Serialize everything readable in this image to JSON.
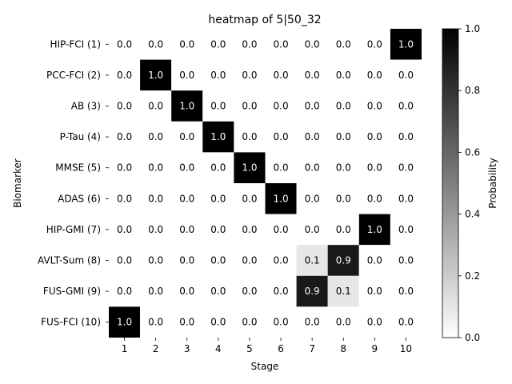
{
  "chart_data": {
    "type": "heatmap",
    "title": "heatmap of 5|50_32",
    "xlabel": "Stage",
    "ylabel": "Biomarker",
    "colorbar_label": "Probability",
    "x": [
      "1",
      "2",
      "3",
      "4",
      "5",
      "6",
      "7",
      "8",
      "9",
      "10"
    ],
    "y": [
      "HIP-FCI (1)",
      "PCC-FCI (2)",
      "AB (3)",
      "P-Tau (4)",
      "MMSE (5)",
      "ADAS (6)",
      "HIP-GMI (7)",
      "AVLT-Sum (8)",
      "FUS-GMI (9)",
      "FUS-FCI (10)"
    ],
    "values": [
      [
        0.0,
        0.0,
        0.0,
        0.0,
        0.0,
        0.0,
        0.0,
        0.0,
        0.0,
        1.0
      ],
      [
        0.0,
        1.0,
        0.0,
        0.0,
        0.0,
        0.0,
        0.0,
        0.0,
        0.0,
        0.0
      ],
      [
        0.0,
        0.0,
        1.0,
        0.0,
        0.0,
        0.0,
        0.0,
        0.0,
        0.0,
        0.0
      ],
      [
        0.0,
        0.0,
        0.0,
        1.0,
        0.0,
        0.0,
        0.0,
        0.0,
        0.0,
        0.0
      ],
      [
        0.0,
        0.0,
        0.0,
        0.0,
        1.0,
        0.0,
        0.0,
        0.0,
        0.0,
        0.0
      ],
      [
        0.0,
        0.0,
        0.0,
        0.0,
        0.0,
        1.0,
        0.0,
        0.0,
        0.0,
        0.0
      ],
      [
        0.0,
        0.0,
        0.0,
        0.0,
        0.0,
        0.0,
        0.0,
        0.0,
        1.0,
        0.0
      ],
      [
        0.0,
        0.0,
        0.0,
        0.0,
        0.0,
        0.0,
        0.1,
        0.9,
        0.0,
        0.0
      ],
      [
        0.0,
        0.0,
        0.0,
        0.0,
        0.0,
        0.0,
        0.9,
        0.1,
        0.0,
        0.0
      ],
      [
        1.0,
        0.0,
        0.0,
        0.0,
        0.0,
        0.0,
        0.0,
        0.0,
        0.0,
        0.0
      ]
    ],
    "colorbar_range": [
      0.0,
      1.0
    ],
    "colorbar_ticks": [
      "0.0",
      "0.2",
      "0.4",
      "0.6",
      "0.8",
      "1.0"
    ],
    "colormap": [
      "#ffffff",
      "#000000"
    ],
    "grid": false,
    "annotations": true
  }
}
